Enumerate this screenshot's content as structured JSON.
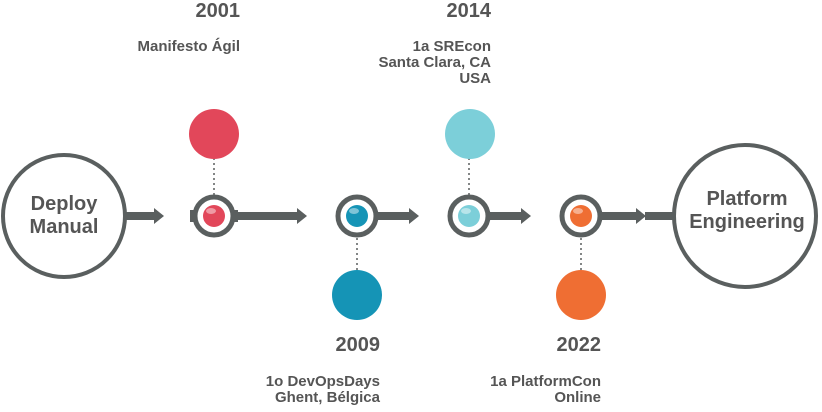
{
  "start": {
    "label": "Deploy\nManual"
  },
  "end": {
    "label": "Platform\nEngineering"
  },
  "colors": {
    "line": "#5a5f5f",
    "text": "#555555",
    "red": "#e2475a",
    "blue": "#1594b6",
    "lightblue": "#7ccfd9",
    "orange": "#ef6e33"
  },
  "milestones": [
    {
      "year": "2001",
      "text": "Manifesto Ágil",
      "color": "red"
    },
    {
      "year": "2009",
      "text": "1o DevOpsDays\nGhent, Bélgica",
      "color": "blue"
    },
    {
      "year": "2014",
      "text": "1a SREcon\nSanta Clara, CA\nUSA",
      "color": "lightblue"
    },
    {
      "year": "2022",
      "text": "1a PlatformCon\nOnline",
      "color": "orange"
    }
  ]
}
